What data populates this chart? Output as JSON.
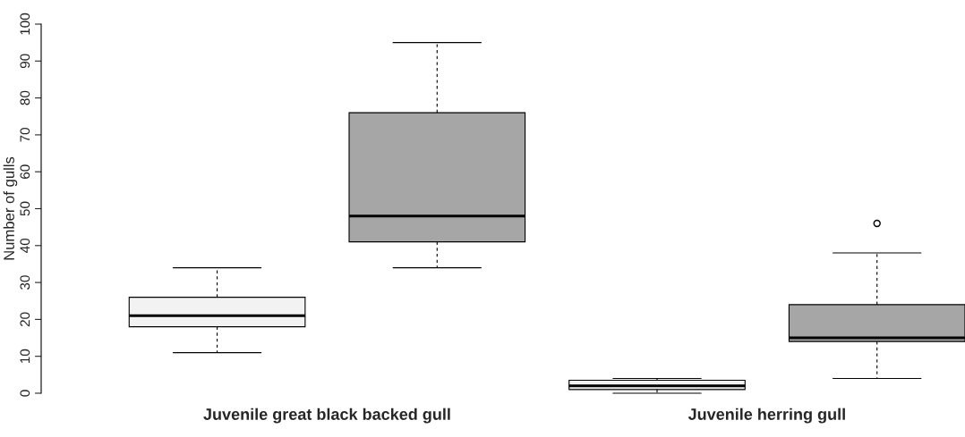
{
  "chart_data": {
    "type": "box",
    "ylabel": "Number of gulls",
    "categories": [
      "Juvenile great black backed gull",
      "Juvenile herring gull"
    ],
    "series": [
      {
        "color": "#f2f2f2",
        "boxes": [
          {
            "low": 11,
            "q1": 18,
            "median": 21,
            "q3": 26,
            "high": 34
          },
          {
            "low": 0,
            "q1": 1,
            "median": 2,
            "q3": 3.5,
            "high": 4
          }
        ]
      },
      {
        "color": "#a6a6a6",
        "boxes": [
          {
            "low": 34,
            "q1": 41,
            "median": 48,
            "q3": 76,
            "high": 95
          },
          {
            "low": 4,
            "q1": 14,
            "median": 15,
            "q3": 24,
            "high": 38,
            "outliers": [
              46
            ]
          }
        ]
      }
    ],
    "ylim": [
      0,
      100
    ],
    "yticks": [
      0,
      10,
      20,
      30,
      40,
      50,
      60,
      70,
      80,
      90,
      100
    ],
    "grid": false
  }
}
